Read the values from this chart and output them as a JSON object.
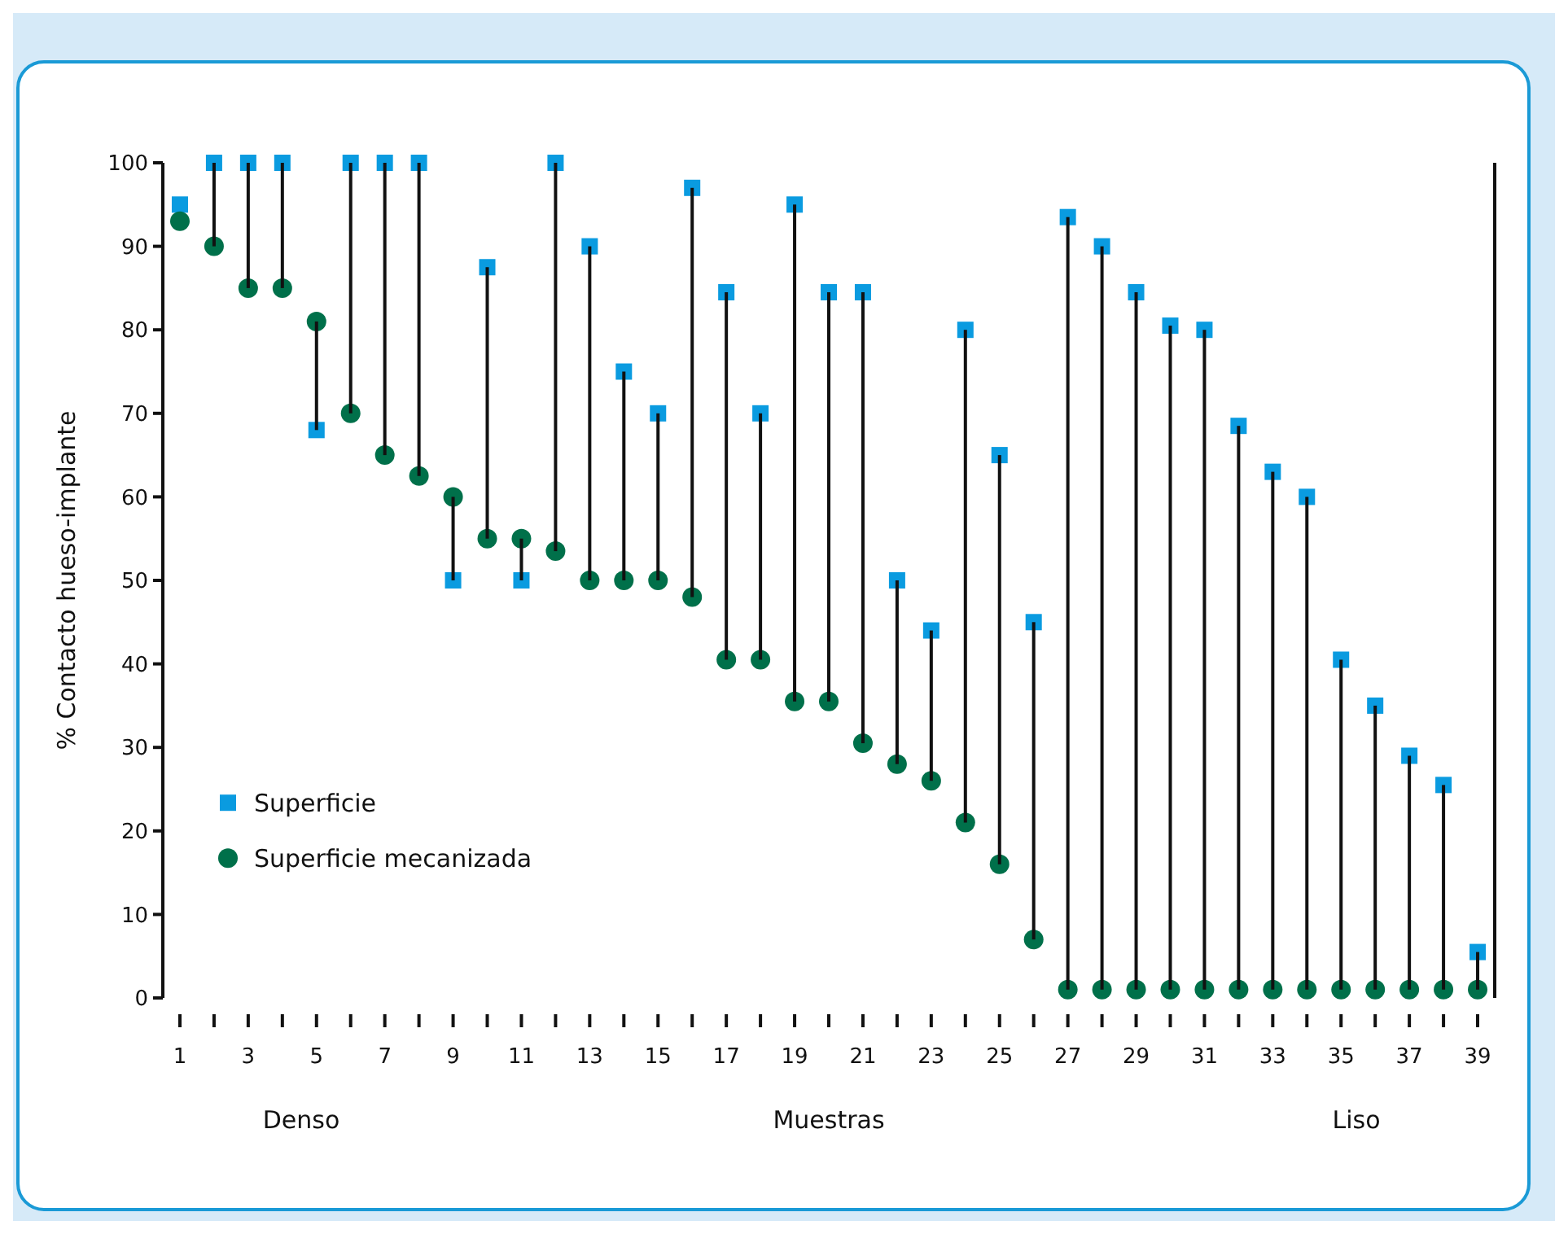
{
  "chart_data": {
    "type": "scatter",
    "xlabel": "Muestras",
    "ylabel": "% Contacto hueso-implante",
    "annotations": [
      "Denso",
      "Liso"
    ],
    "x": [
      1,
      2,
      3,
      4,
      5,
      6,
      7,
      8,
      9,
      10,
      11,
      12,
      13,
      14,
      15,
      16,
      17,
      18,
      19,
      20,
      21,
      22,
      23,
      24,
      25,
      26,
      27,
      28,
      29,
      30,
      31,
      32,
      33,
      34,
      35,
      36,
      37,
      38,
      39
    ],
    "series": [
      {
        "type": "bar",
        "color": "#111111",
        "base": [
          null,
          90,
          85,
          85,
          81,
          70,
          65,
          62.5,
          60,
          55,
          55,
          53.5,
          50,
          50,
          50,
          48,
          40.5,
          40.5,
          35.5,
          35.5,
          30.5,
          28,
          26,
          21,
          16,
          7,
          1,
          1,
          1,
          1,
          1,
          1,
          1,
          1,
          1,
          1,
          1,
          1,
          1
        ],
        "values": [
          null,
          10,
          15,
          15,
          -13,
          30,
          35,
          37.5,
          -10,
          32.5,
          -5,
          46.5,
          40,
          25,
          20,
          49,
          44,
          29.5,
          59.5,
          49,
          54,
          22,
          18,
          59,
          49,
          38,
          92.5,
          89,
          83.5,
          79.5,
          79,
          67.5,
          62,
          59,
          39.5,
          34,
          28,
          24.5,
          4.5
        ]
      },
      {
        "name": "Superficie",
        "color": "#0a9be0",
        "marker": "square",
        "values": [
          95,
          100,
          100,
          100,
          68,
          100,
          100,
          100,
          50,
          87.5,
          50,
          100,
          90,
          75,
          70,
          97,
          84.5,
          70,
          95,
          84.5,
          84.5,
          50,
          44,
          80,
          65,
          45,
          93.5,
          90,
          84.5,
          80.5,
          80,
          68.5,
          63,
          60,
          40.5,
          35,
          29,
          25.5,
          5.5
        ]
      },
      {
        "name": "Superficie mecanizada",
        "color": "#00704a",
        "marker": "circle",
        "values": [
          93,
          90,
          85,
          85,
          81,
          70,
          65,
          62.5,
          60,
          55,
          55,
          53.5,
          50,
          50,
          50,
          48,
          40.5,
          40.5,
          35.5,
          35.5,
          30.5,
          28,
          26,
          21,
          16,
          7,
          1,
          1,
          1,
          1,
          1,
          1,
          1,
          1,
          1,
          1,
          1,
          1,
          1
        ]
      }
    ],
    "xlim": [
      0.5,
      39.5
    ],
    "xticks": [
      1,
      {
        "value": 2,
        "label": null
      },
      3,
      {
        "value": 4,
        "label": null
      },
      5,
      {
        "value": 6,
        "label": null
      },
      7,
      {
        "value": 8,
        "label": null
      },
      9,
      {
        "value": 10,
        "label": null
      },
      11,
      {
        "value": 12,
        "label": null
      },
      13,
      {
        "value": 14,
        "label": null
      },
      15,
      {
        "value": 16,
        "label": null
      },
      17,
      {
        "value": 18,
        "label": null
      },
      19,
      {
        "value": 20,
        "label": null
      },
      21,
      {
        "value": 22,
        "label": null
      },
      23,
      {
        "value": 24,
        "label": null
      },
      25,
      {
        "value": 26,
        "label": null
      },
      27,
      {
        "value": 28,
        "label": null
      },
      29,
      {
        "value": 30,
        "label": null
      },
      31,
      {
        "value": 32,
        "label": null
      },
      33,
      {
        "value": 34,
        "label": null
      },
      35,
      {
        "value": 36,
        "label": null
      },
      37,
      {
        "value": 38,
        "label": null
      },
      39
    ],
    "ylim": [
      0,
      100
    ],
    "yticks": [
      0,
      10,
      20,
      30,
      40,
      50,
      60,
      70,
      80,
      90,
      100
    ],
    "grid": false,
    "legend": "bottom left"
  }
}
